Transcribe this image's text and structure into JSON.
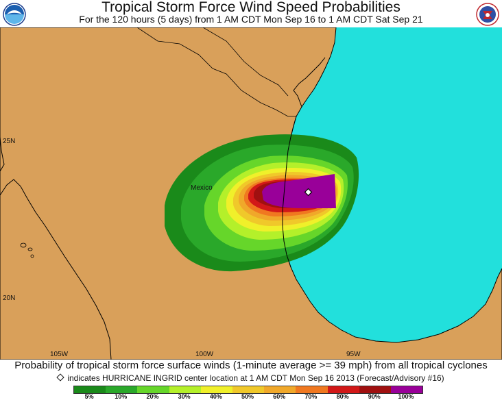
{
  "header": {
    "title": "Tropical Storm Force Wind Speed Probabilities",
    "subtitle": "For the 120 hours (5 days) from 1 AM CDT Mon Sep 16 to 1 AM CDT Sat Sep 21"
  },
  "logos": {
    "left": "noaa-logo-icon",
    "right": "national-weather-service-logo-icon"
  },
  "map": {
    "colors": {
      "land": "#d9a05a",
      "ocean": "#22e0dc",
      "coastline": "#000000"
    },
    "place_label": "Mexico",
    "lat_labels": [
      "25N",
      "20N"
    ],
    "lon_labels": [
      "105W",
      "100W",
      "95W"
    ],
    "center_marker": "storm-center-diamond-icon"
  },
  "footer": {
    "line1": "Probability of tropical storm force surface winds (1-minute average >= 39 mph) from all tropical cyclones",
    "line2": "indicates HURRICANE INGRID center location at 1 AM CDT Mon Sep 16 2013 (Forecast/Advisory #16)"
  },
  "legend": {
    "labels": [
      "5%",
      "10%",
      "20%",
      "30%",
      "40%",
      "50%",
      "60%",
      "70%",
      "80%",
      "90%",
      "100%"
    ],
    "colors": [
      "#1a8a1a",
      "#2aa82a",
      "#66d62a",
      "#b4f02a",
      "#f0f02a",
      "#f0c82a",
      "#f0a82a",
      "#f07820",
      "#d21818",
      "#a01010",
      "#990099"
    ]
  }
}
